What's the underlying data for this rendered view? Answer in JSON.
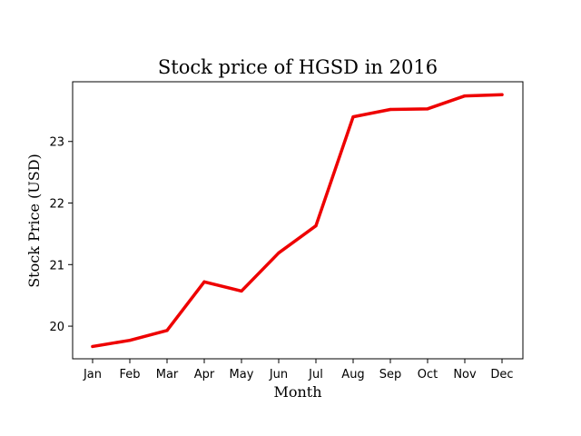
{
  "chart_data": {
    "type": "line",
    "title": "Stock price of HGSD in 2016",
    "xlabel": "Month",
    "ylabel": "Stock Price (USD)",
    "categories": [
      "Jan",
      "Feb",
      "Mar",
      "Apr",
      "May",
      "Jun",
      "Jul",
      "Aug",
      "Sep",
      "Oct",
      "Nov",
      "Dec"
    ],
    "series": [
      {
        "values": [
          19.67,
          19.77,
          19.93,
          20.72,
          20.57,
          21.19,
          21.63,
          23.4,
          23.52,
          23.53,
          23.74,
          23.76
        ],
        "color": "#ee0000"
      }
    ],
    "yticks": [
      20,
      21,
      22,
      23
    ],
    "ylim": [
      19.47,
      23.97
    ],
    "grid": false,
    "legend": "none"
  }
}
